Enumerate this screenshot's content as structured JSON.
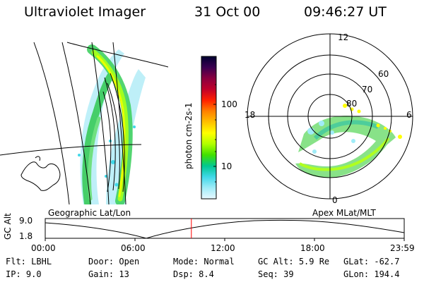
{
  "header": {
    "instrument": "Ultraviolet Imager",
    "date": "31 Oct 00",
    "time": "09:46:27 UT"
  },
  "left_panel": {
    "caption": "Geographic Lat/Lon"
  },
  "right_panel": {
    "caption": "Apex MLat/MLT",
    "mlt_labels": [
      "12",
      "18",
      "6",
      "0"
    ],
    "lat_labels": [
      "60",
      "70",
      "80"
    ]
  },
  "colorbar": {
    "unit_label": "photon cm-2s-1",
    "ticks": [
      "100",
      "10"
    ],
    "colors": [
      "#000030",
      "#3a0050",
      "#8a0040",
      "#c0002a",
      "#ff2000",
      "#ff8000",
      "#ffc000",
      "#ffff00",
      "#b0ff00",
      "#40e000",
      "#00c890",
      "#40d8e8",
      "#a0ecf8",
      "#e8f8ff"
    ]
  },
  "altitude_plot": {
    "ylabel": "GC Alt",
    "y_ticks": [
      "9.0",
      "1.8"
    ],
    "x_ticks": [
      "00:00",
      "06:00",
      "12:00",
      "18:00",
      "23:59"
    ],
    "current_time_hours": 9.77,
    "marker_color": "#ff0000"
  },
  "status": {
    "row1": [
      {
        "label": "Flt:",
        "value": "LBHL"
      },
      {
        "label": "Door:",
        "value": "Open"
      },
      {
        "label": "Mode:",
        "value": "Normal"
      },
      {
        "label": "GC Alt:",
        "value": "5.9 Re"
      },
      {
        "label": "GLat:",
        "value": "-62.7"
      }
    ],
    "row2": [
      {
        "label": "IP:",
        "value": "9.0"
      },
      {
        "label": "Gain:",
        "value": "13"
      },
      {
        "label": "Dsp:",
        "value": "8.4"
      },
      {
        "label": "Seq:",
        "value": "39"
      },
      {
        "label": "GLon:",
        "value": "194.4"
      }
    ]
  }
}
